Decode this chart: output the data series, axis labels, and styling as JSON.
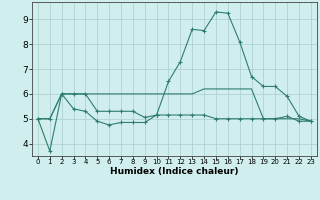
{
  "xlabel": "Humidex (Indice chaleur)",
  "x_values": [
    0,
    1,
    2,
    3,
    4,
    5,
    6,
    7,
    8,
    9,
    10,
    11,
    12,
    13,
    14,
    15,
    16,
    17,
    18,
    19,
    20,
    21,
    22,
    23
  ],
  "line1_y": [
    5.0,
    3.7,
    6.0,
    5.4,
    5.3,
    4.9,
    4.75,
    4.85,
    4.85,
    4.85,
    5.15,
    5.15,
    5.15,
    5.15,
    5.15,
    5.0,
    5.0,
    5.0,
    5.0,
    5.0,
    5.0,
    5.1,
    4.9,
    4.9
  ],
  "line2_y": [
    5.0,
    5.0,
    6.0,
    6.0,
    6.0,
    5.3,
    5.3,
    5.3,
    5.3,
    5.05,
    5.15,
    6.5,
    7.3,
    8.6,
    8.55,
    9.3,
    9.25,
    8.1,
    6.7,
    6.3,
    6.3,
    5.9,
    5.1,
    4.9
  ],
  "line3_y": [
    5.0,
    5.0,
    6.0,
    6.0,
    6.0,
    6.0,
    6.0,
    6.0,
    6.0,
    6.0,
    6.0,
    6.0,
    6.0,
    6.0,
    6.2,
    6.2,
    6.2,
    6.2,
    6.2,
    5.0,
    5.0,
    5.0,
    5.0,
    4.9
  ],
  "line_color": "#2e7d6e",
  "bg_color": "#d0eeee",
  "grid_color": "#aacccc",
  "ylim": [
    3.5,
    9.7
  ],
  "yticks": [
    4,
    5,
    6,
    7,
    8,
    9
  ],
  "xlim": [
    -0.5,
    23.5
  ]
}
